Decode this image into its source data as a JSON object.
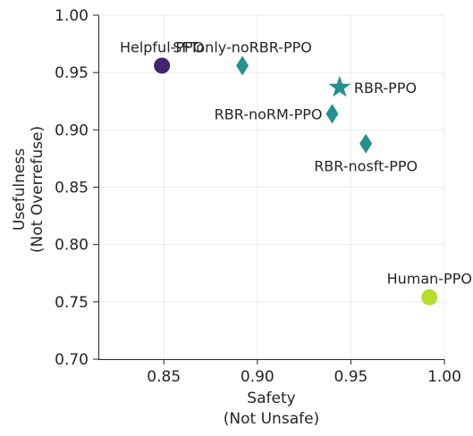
{
  "chart_data": {
    "type": "scatter",
    "title": "",
    "xlabel": [
      "Safety",
      "(Not Unsafe)"
    ],
    "ylabel": [
      "Usefulness",
      "(Not Overrefuse)"
    ],
    "xlim": [
      0.815,
      1.0
    ],
    "ylim": [
      0.7,
      1.0
    ],
    "xticks": [
      0.85,
      0.9,
      0.95,
      1.0
    ],
    "xtick_labels": [
      "0.85",
      "0.90",
      "0.95",
      "1.00"
    ],
    "yticks": [
      0.7,
      0.75,
      0.8,
      0.85,
      0.9,
      0.95,
      1.0
    ],
    "ytick_labels": [
      "0.70",
      "0.75",
      "0.80",
      "0.85",
      "0.90",
      "0.95",
      "1.00"
    ],
    "grid": true,
    "points": [
      {
        "label": "Helpful-PPO",
        "x": 0.849,
        "y": 0.956,
        "marker": "circle",
        "color": "#45246f",
        "label_pos": "above"
      },
      {
        "label": "SFTonly-noRBR-PPO",
        "x": 0.892,
        "y": 0.956,
        "marker": "diamond",
        "color": "#26908e",
        "label_pos": "above"
      },
      {
        "label": "RBR-PPO",
        "x": 0.944,
        "y": 0.937,
        "marker": "star",
        "color": "#26908e",
        "label_pos": "right"
      },
      {
        "label": "RBR-noRM-PPO",
        "x": 0.94,
        "y": 0.914,
        "marker": "diamond",
        "color": "#26908e",
        "label_pos": "left"
      },
      {
        "label": "RBR-nosft-PPO",
        "x": 0.958,
        "y": 0.888,
        "marker": "diamond",
        "color": "#26908e",
        "label_pos": "below"
      },
      {
        "label": "Human-PPO",
        "x": 0.992,
        "y": 0.754,
        "marker": "circle",
        "color": "#b5de2b",
        "label_pos": "above"
      }
    ]
  }
}
